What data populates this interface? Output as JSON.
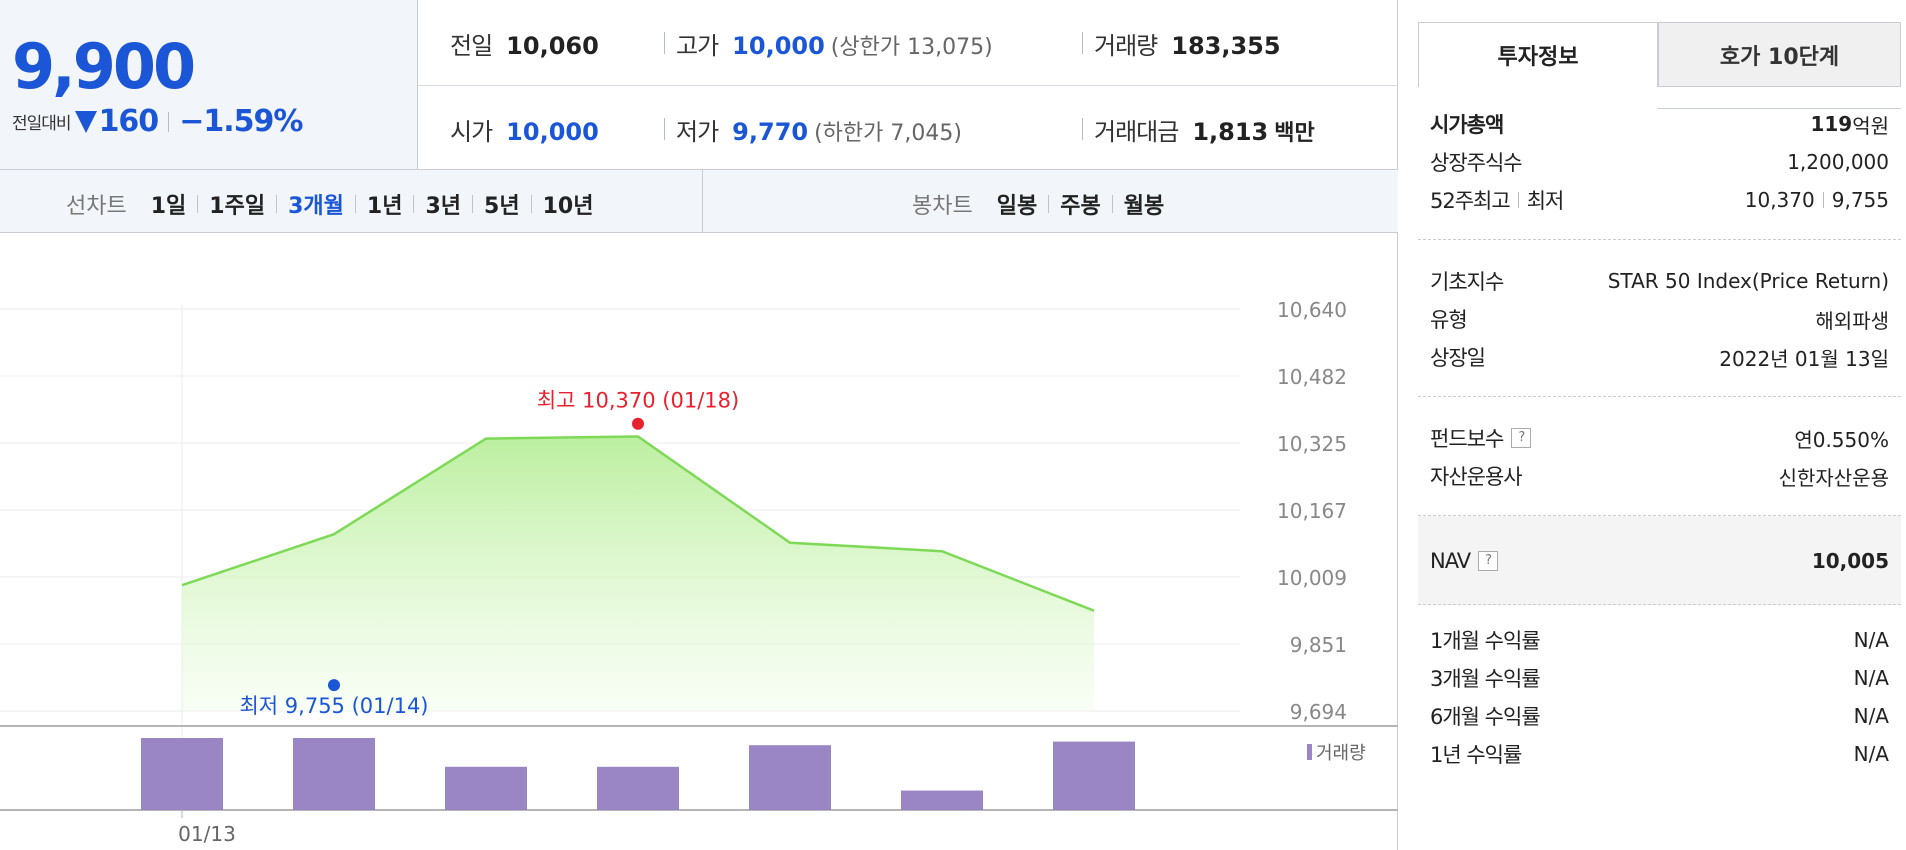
{
  "summary": {
    "price": "9,900",
    "change_label": "전일대비",
    "change_amount": "160",
    "change_percent": "−1.59%",
    "direction": "down",
    "color_down": "#1a56d6"
  },
  "quote": {
    "prev_close_label": "전일",
    "prev_close": "10,060",
    "high_label": "고가",
    "high": "10,000",
    "upper_limit": "(상한가 13,075)",
    "volume_label": "거래량",
    "volume": "183,355",
    "open_label": "시가",
    "open": "10,000",
    "low_label": "저가",
    "low": "9,770",
    "lower_limit": "(하한가 7,045)",
    "trade_value_label": "거래대금",
    "trade_value": "1,813",
    "trade_value_unit": "백만"
  },
  "line_chart_tabs": {
    "title": "선차트",
    "items": [
      "1일",
      "1주일",
      "3개월",
      "1년",
      "3년",
      "5년",
      "10년"
    ],
    "active": "3개월"
  },
  "candle_chart_tabs": {
    "title": "봉차트",
    "items": [
      "일봉",
      "주봉",
      "월봉"
    ]
  },
  "chart_data": {
    "type": "area",
    "y_ticks": [
      "10,640",
      "10,482",
      "10,325",
      "10,167",
      "10,009",
      "9,851",
      "9,694"
    ],
    "ylim": [
      9694,
      10640
    ],
    "x_tick_labels": [
      "01/13"
    ],
    "series": [
      {
        "values": [
          9990,
          10110,
          10335,
          10340,
          10090,
          10070,
          9930
        ]
      }
    ],
    "volume": [
      100,
      100,
      60,
      60,
      90,
      27,
      95
    ],
    "volume_legend": "거래량",
    "max_annotation": "최고 10,370 (01/18)",
    "min_annotation": "최저 9,755 (01/14)",
    "line_color": "#7ed957",
    "fill_color": "#b8ee9a",
    "volume_color": "#9a86c4",
    "max_color": "#e8212e",
    "min_color": "#1a56d6"
  },
  "info_tabs": {
    "invest": "투자정보",
    "hoga": "호가 10단계"
  },
  "info": {
    "market_cap_label": "시가총액",
    "market_cap_value": "119",
    "market_cap_unit": "억원",
    "shares_label": "상장주식수",
    "shares_value": "1,200,000",
    "w52_label_high": "52주최고",
    "w52_label_low": "최저",
    "w52_high": "10,370",
    "w52_low": "9,755",
    "index_label": "기초지수",
    "index_value": "STAR 50 Index(Price Return)",
    "type_label": "유형",
    "type_value": "해외파생",
    "listing_label": "상장일",
    "listing_value": "2022년 01월 13일",
    "fee_label": "펀드보수",
    "fee_value": "연0.550%",
    "manager_label": "자산운용사",
    "manager_value": "신한자산운용",
    "nav_label": "NAV",
    "nav_value": "10,005",
    "ret_1m_label": "1개월 수익률",
    "ret_1m": "N/A",
    "ret_3m_label": "3개월 수익률",
    "ret_3m": "N/A",
    "ret_6m_label": "6개월 수익률",
    "ret_6m": "N/A",
    "ret_1y_label": "1년 수익률",
    "ret_1y": "N/A"
  }
}
